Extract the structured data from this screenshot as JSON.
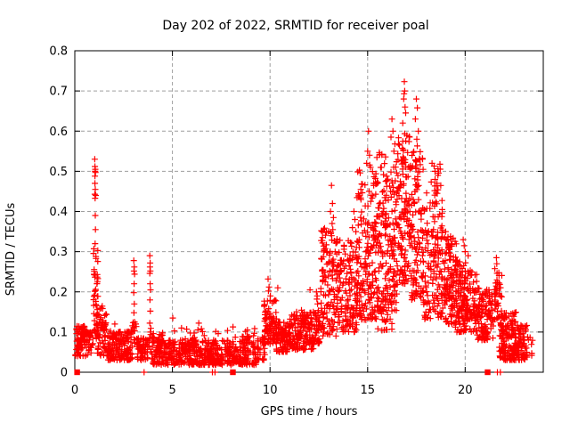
{
  "chart_data": {
    "type": "scatter",
    "title": "Day 202 of 2022, SRMTID for receiver poal",
    "xlabel": "GPS time / hours",
    "ylabel": "SRMTID / TECUs",
    "xlim": [
      0,
      24
    ],
    "ylim": [
      0,
      0.8
    ],
    "xticks": [
      0,
      5,
      10,
      15,
      20
    ],
    "yticks": [
      0,
      0.1,
      0.2,
      0.3,
      0.4,
      0.5,
      0.6,
      0.7,
      0.8
    ],
    "grid": true,
    "legend": "none",
    "marker": "plus",
    "marker_size": 7,
    "color": "#ff0000",
    "grid_color": "#9e9e9e",
    "axis_color": "#000000",
    "seed": 7,
    "clusters": [
      [
        0.03,
        0.65,
        0.04,
        0.115,
        85,
        1.1
      ],
      [
        0.6,
        0.95,
        0.04,
        0.1,
        20,
        1.1
      ],
      [
        0.95,
        1.2,
        0.09,
        0.31,
        48,
        1.1
      ],
      [
        1.1,
        1.7,
        0.04,
        0.17,
        70,
        1.5
      ],
      [
        1.7,
        2.95,
        0.03,
        0.105,
        150,
        1.4
      ],
      [
        2.95,
        3.15,
        0.05,
        0.13,
        12,
        1.0
      ],
      [
        3.15,
        3.78,
        0.03,
        0.085,
        60,
        1.2
      ],
      [
        3.78,
        3.97,
        0.05,
        0.13,
        10,
        1.0
      ],
      [
        3.95,
        9.35,
        0.018,
        0.08,
        540,
        1.25
      ],
      [
        4.0,
        9.3,
        0.075,
        0.115,
        24,
        1.0
      ],
      [
        4.25,
        4.55,
        0.05,
        0.1,
        20,
        1.0
      ],
      [
        5.9,
        6.2,
        0.05,
        0.1,
        18,
        1.0
      ],
      [
        8.55,
        8.95,
        0.04,
        0.09,
        18,
        1.0
      ],
      [
        9.35,
        9.75,
        0.03,
        0.09,
        28,
        1.1
      ],
      [
        9.7,
        10.35,
        0.07,
        0.185,
        85,
        1.15
      ],
      [
        10.3,
        11.1,
        0.05,
        0.125,
        100,
        1.15
      ],
      [
        11.0,
        12.25,
        0.055,
        0.155,
        150,
        1.2
      ],
      [
        12.25,
        12.6,
        0.07,
        0.16,
        40,
        1.1
      ],
      [
        12.6,
        13.45,
        0.09,
        0.36,
        130,
        1.25
      ],
      [
        13.45,
        14.45,
        0.1,
        0.33,
        140,
        1.3
      ],
      [
        14.45,
        15.45,
        0.13,
        0.52,
        180,
        1.35
      ],
      [
        15.45,
        16.55,
        0.15,
        0.55,
        200,
        1.25
      ],
      [
        15.5,
        16.5,
        0.1,
        0.16,
        18,
        1.0
      ],
      [
        16.55,
        17.25,
        0.22,
        0.6,
        140,
        1.15
      ],
      [
        17.25,
        17.85,
        0.18,
        0.58,
        110,
        1.25
      ],
      [
        17.85,
        18.85,
        0.13,
        0.48,
        150,
        1.3
      ],
      [
        18.4,
        18.75,
        0.44,
        0.52,
        12,
        1.0
      ],
      [
        18.85,
        19.55,
        0.12,
        0.34,
        115,
        1.2
      ],
      [
        19.5,
        20.05,
        0.1,
        0.28,
        110,
        1.2
      ],
      [
        20.05,
        20.6,
        0.1,
        0.26,
        70,
        1.1
      ],
      [
        20.6,
        21.45,
        0.08,
        0.21,
        110,
        1.2
      ],
      [
        21.5,
        21.75,
        0.12,
        0.26,
        24,
        1.0
      ],
      [
        21.3,
        21.9,
        0.15,
        0.25,
        20,
        1.0
      ],
      [
        21.75,
        22.65,
        0.03,
        0.15,
        160,
        1.2
      ],
      [
        22.65,
        23.2,
        0.03,
        0.12,
        70,
        1.2
      ],
      [
        23.2,
        23.45,
        0.04,
        0.09,
        8,
        1.0
      ]
    ],
    "notable_points": [
      [
        0.33,
        0.112
      ],
      [
        1.02,
        0.53
      ],
      [
        1.03,
        0.512
      ],
      [
        1.05,
        0.505
      ],
      [
        1.04,
        0.5
      ],
      [
        1.06,
        0.497
      ],
      [
        1.03,
        0.488
      ],
      [
        1.03,
        0.47
      ],
      [
        1.05,
        0.455
      ],
      [
        1.02,
        0.443
      ],
      [
        1.07,
        0.44
      ],
      [
        1.04,
        0.433
      ],
      [
        1.05,
        0.39
      ],
      [
        1.06,
        0.355
      ],
      [
        1.04,
        0.32
      ],
      [
        2.05,
        0.12
      ],
      [
        3.02,
        0.278
      ],
      [
        3.05,
        0.262
      ],
      [
        3.03,
        0.252
      ],
      [
        3.06,
        0.244
      ],
      [
        3.04,
        0.22
      ],
      [
        3.02,
        0.198
      ],
      [
        3.05,
        0.17
      ],
      [
        3.03,
        0.148
      ],
      [
        3.06,
        0.125
      ],
      [
        3.84,
        0.29
      ],
      [
        3.86,
        0.272
      ],
      [
        3.85,
        0.262
      ],
      [
        3.87,
        0.252
      ],
      [
        3.84,
        0.246
      ],
      [
        3.86,
        0.22
      ],
      [
        3.88,
        0.205
      ],
      [
        3.85,
        0.18
      ],
      [
        3.87,
        0.152
      ],
      [
        3.84,
        0.122
      ],
      [
        5.02,
        0.135
      ],
      [
        6.35,
        0.122
      ],
      [
        9.9,
        0.232
      ],
      [
        9.95,
        0.212
      ],
      [
        9.92,
        0.202
      ],
      [
        10.02,
        0.19
      ],
      [
        10.4,
        0.21
      ],
      [
        12.05,
        0.205
      ],
      [
        12.38,
        0.2
      ],
      [
        12.42,
        0.19
      ],
      [
        12.4,
        0.182
      ],
      [
        12.44,
        0.17
      ],
      [
        13.15,
        0.465
      ],
      [
        13.2,
        0.42
      ],
      [
        13.1,
        0.4
      ],
      [
        13.25,
        0.385
      ],
      [
        13.18,
        0.37
      ],
      [
        13.22,
        0.355
      ],
      [
        13.12,
        0.345
      ],
      [
        14.3,
        0.4
      ],
      [
        14.35,
        0.38
      ],
      [
        14.22,
        0.36
      ],
      [
        14.4,
        0.35
      ],
      [
        15.05,
        0.6
      ],
      [
        15.0,
        0.55
      ],
      [
        15.1,
        0.54
      ],
      [
        14.95,
        0.52
      ],
      [
        15.15,
        0.51
      ],
      [
        16.25,
        0.63
      ],
      [
        16.3,
        0.6
      ],
      [
        16.2,
        0.585
      ],
      [
        16.4,
        0.568
      ],
      [
        16.35,
        0.55
      ],
      [
        16.88,
        0.723
      ],
      [
        16.9,
        0.7
      ],
      [
        16.87,
        0.693
      ],
      [
        16.85,
        0.68
      ],
      [
        16.92,
        0.66
      ],
      [
        16.95,
        0.645
      ],
      [
        16.8,
        0.62
      ],
      [
        17.5,
        0.68
      ],
      [
        17.55,
        0.658
      ],
      [
        17.45,
        0.63
      ],
      [
        17.6,
        0.6
      ],
      [
        17.52,
        0.58
      ],
      [
        18.3,
        0.52
      ],
      [
        18.45,
        0.5
      ],
      [
        18.6,
        0.49
      ],
      [
        18.55,
        0.47
      ],
      [
        19.0,
        0.35
      ],
      [
        19.9,
        0.33
      ],
      [
        19.95,
        0.315
      ],
      [
        20.0,
        0.3
      ],
      [
        20.15,
        0.29
      ],
      [
        21.6,
        0.285
      ],
      [
        21.62,
        0.27
      ]
    ],
    "zero_square_markers_x": [
      0.12,
      8.1,
      21.15
    ],
    "zero_plus_markers_x": [
      3.55,
      7.05,
      7.18,
      21.65,
      21.8
    ]
  }
}
